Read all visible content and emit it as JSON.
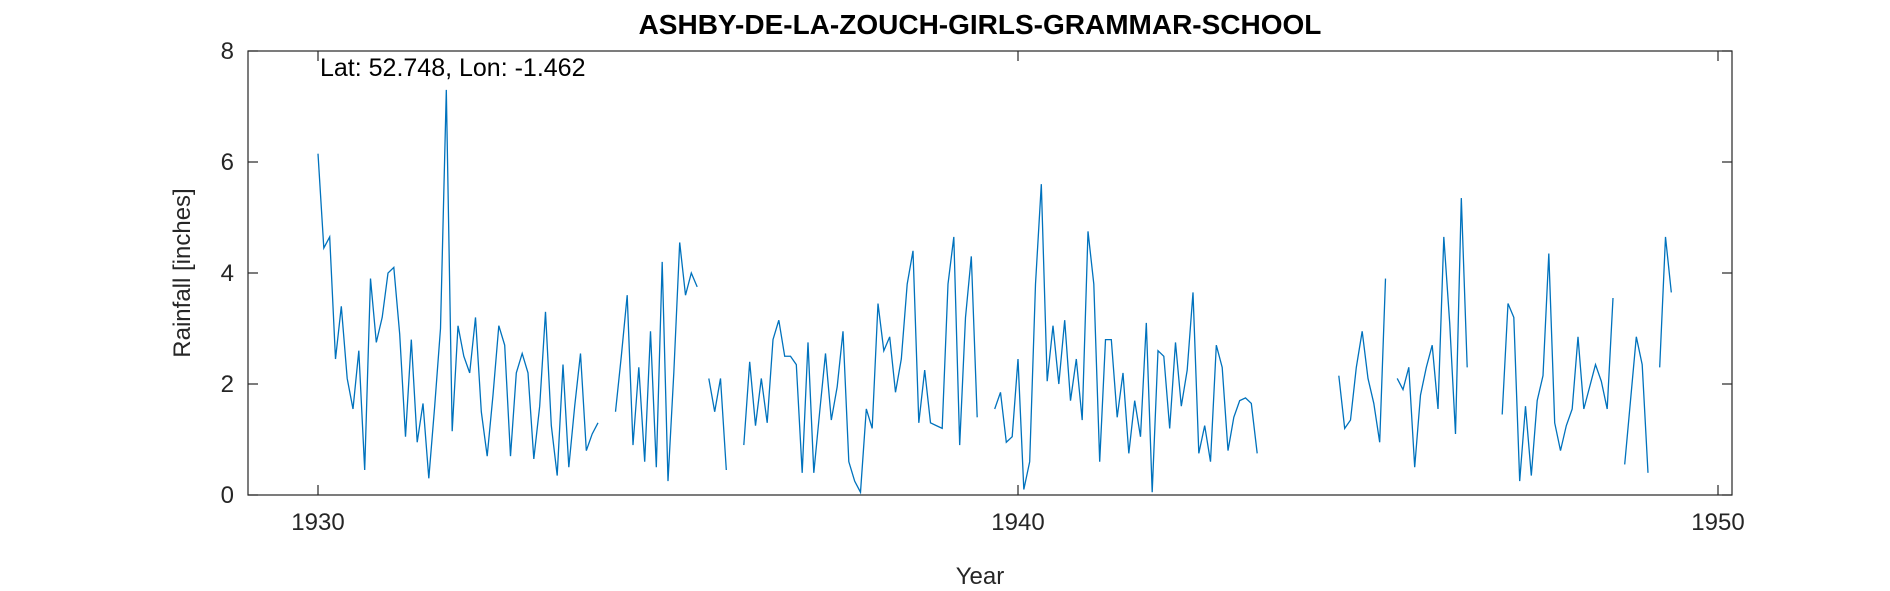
{
  "chart_data": {
    "type": "line",
    "title": "ASHBY-DE-LA-ZOUCH-GIRLS-GRAMMAR-SCHOOL",
    "annotation": "Lat: 52.748, Lon: -1.462",
    "xlabel": "Year",
    "ylabel": "Rainfall [inches]",
    "xlim": [
      1929,
      1950.2
    ],
    "xticks": [
      1930,
      1940,
      1950
    ],
    "ylim": [
      0,
      8
    ],
    "yticks": [
      0,
      2,
      4,
      6,
      8
    ],
    "series": [
      {
        "name": "Rainfall",
        "color": "#0072bd",
        "x": [
          1930,
          1930.083,
          1930.167,
          1930.25,
          1930.333,
          1930.417,
          1930.5,
          1930.583,
          1930.667,
          1930.75,
          1930.833,
          1930.917,
          1931,
          1931.083,
          1931.167,
          1931.25,
          1931.333,
          1931.417,
          1931.5,
          1931.583,
          1931.667,
          1931.75,
          1931.833,
          1931.917,
          1932,
          1932.083,
          1932.167,
          1932.25,
          1932.333,
          1932.417,
          1932.5,
          1932.583,
          1932.667,
          1932.75,
          1932.833,
          1932.917,
          1933,
          1933.083,
          1933.167,
          1933.25,
          1933.333,
          1933.417,
          1933.5,
          1933.583,
          1933.667,
          1933.75,
          1933.833,
          1933.917,
          1934,
          1934.083,
          1934.167,
          1934.25,
          1934.333,
          1934.417,
          1934.5,
          1934.583,
          1934.667,
          1934.75,
          1934.833,
          1934.917,
          1935,
          1935.083,
          1935.167,
          1935.25,
          1935.333,
          1935.417,
          1935.5,
          1935.583,
          1935.667,
          1935.75,
          1935.833,
          1935.917,
          1936,
          1936.083,
          1936.167,
          1936.25,
          1936.333,
          1936.417,
          1936.5,
          1936.583,
          1936.667,
          1936.75,
          1936.833,
          1936.917,
          1937,
          1937.083,
          1937.167,
          1937.25,
          1937.333,
          1937.417,
          1937.5,
          1937.583,
          1937.667,
          1937.75,
          1937.833,
          1937.917,
          1938,
          1938.083,
          1938.167,
          1938.25,
          1938.333,
          1938.417,
          1938.5,
          1938.583,
          1938.667,
          1938.75,
          1938.833,
          1938.917,
          1939,
          1939.083,
          1939.167,
          1939.25,
          1939.333,
          1939.417,
          1939.5,
          1939.583,
          1939.667,
          1939.75,
          1939.833,
          1939.917,
          1940,
          1940.083,
          1940.167,
          1940.25,
          1940.333,
          1940.417,
          1940.5,
          1940.583,
          1940.667,
          1940.75,
          1940.833,
          1940.917,
          1941,
          1941.083,
          1941.167,
          1941.25,
          1941.333,
          1941.417,
          1941.5,
          1941.583,
          1941.667,
          1941.75,
          1941.833,
          1941.917,
          1942,
          1942.083,
          1942.167,
          1942.25,
          1942.333,
          1942.417,
          1942.5,
          1942.583,
          1942.667,
          1942.75,
          1942.833,
          1942.917,
          1943,
          1943.083,
          1943.167,
          1943.25,
          1943.333,
          1943.417,
          1943.5,
          1943.583,
          1943.667,
          1943.75,
          1943.833,
          1943.917,
          1944,
          1944.083,
          1944.167,
          1944.25,
          1944.333,
          1944.417,
          1944.5,
          1944.583,
          1944.667,
          1944.75,
          1944.833,
          1944.917,
          1945,
          1945.083,
          1945.167,
          1945.25,
          1945.333,
          1945.417,
          1945.5,
          1945.583,
          1945.667,
          1945.75,
          1945.833,
          1945.917,
          1946,
          1946.083,
          1946.167,
          1946.25,
          1946.333,
          1946.417,
          1946.5,
          1946.583,
          1946.667,
          1946.75,
          1946.833,
          1946.917,
          1947,
          1947.083,
          1947.167,
          1947.25,
          1947.333,
          1947.417,
          1947.5,
          1947.583,
          1947.667,
          1947.75,
          1947.833,
          1947.917,
          1948,
          1948.083,
          1948.167,
          1948.25,
          1948.333,
          1948.417,
          1948.5,
          1948.583,
          1948.667,
          1948.75,
          1948.833,
          1948.917,
          1949,
          1949.083,
          1949.167,
          1949.25,
          1949.333
        ],
        "values": [
          6.15,
          4.45,
          4.65,
          2.45,
          3.4,
          2.1,
          1.55,
          2.6,
          0.45,
          3.9,
          2.75,
          3.2,
          4.0,
          4.1,
          2.9,
          1.05,
          2.8,
          0.95,
          1.65,
          0.3,
          1.6,
          3.0,
          7.3,
          1.15,
          3.05,
          2.5,
          2.2,
          3.2,
          1.5,
          0.7,
          1.8,
          3.05,
          2.7,
          0.7,
          2.2,
          2.55,
          2.2,
          0.65,
          1.6,
          3.3,
          1.25,
          0.35,
          2.35,
          0.5,
          1.6,
          2.55,
          0.8,
          1.1,
          1.3,
          null,
          null,
          1.5,
          2.5,
          3.6,
          0.9,
          2.3,
          0.6,
          2.95,
          0.5,
          4.2,
          0.25,
          2.2,
          4.55,
          3.6,
          4.0,
          3.75,
          null,
          2.1,
          1.5,
          2.1,
          0.45,
          null,
          null,
          0.9,
          2.4,
          1.25,
          2.1,
          1.3,
          2.8,
          3.15,
          2.5,
          2.5,
          2.35,
          0.4,
          2.75,
          0.4,
          1.5,
          2.55,
          1.35,
          1.95,
          2.95,
          0.6,
          0.25,
          0.05,
          1.55,
          1.2,
          3.45,
          2.6,
          2.85,
          1.85,
          2.45,
          3.8,
          4.4,
          1.3,
          2.25,
          1.3,
          1.25,
          1.2,
          3.8,
          4.65,
          0.9,
          3.2,
          4.3,
          1.4,
          null,
          null,
          1.55,
          1.85,
          0.95,
          1.05,
          2.45,
          0.1,
          0.6,
          3.8,
          5.6,
          2.05,
          3.05,
          2.0,
          3.15,
          1.7,
          2.45,
          1.35,
          4.75,
          3.8,
          0.6,
          2.8,
          2.8,
          1.4,
          2.2,
          0.75,
          1.7,
          1.05,
          3.1,
          0.05,
          2.6,
          2.5,
          1.2,
          2.75,
          1.6,
          2.25,
          3.65,
          0.75,
          1.25,
          0.6,
          2.7,
          2.3,
          0.8,
          1.4,
          1.7,
          1.75,
          1.65,
          0.75,
          null,
          null,
          null,
          null,
          null,
          null,
          null,
          null,
          null,
          null,
          null,
          null,
          null,
          2.15,
          1.2,
          1.35,
          2.3,
          2.95,
          2.1,
          1.65,
          0.95,
          3.9,
          null,
          2.1,
          1.9,
          2.3,
          0.5,
          1.8,
          2.3,
          2.7,
          1.55,
          4.65,
          3.1,
          1.1,
          5.35,
          2.3,
          null,
          null,
          null,
          null,
          null,
          1.45,
          3.45,
          3.2,
          0.25,
          1.6,
          0.35,
          1.7,
          2.15,
          4.35,
          1.3,
          0.8,
          1.25,
          1.55,
          2.85,
          1.55,
          1.95,
          2.35,
          2.05,
          1.55,
          3.55,
          null,
          0.55,
          1.7,
          2.85,
          2.35,
          0.4,
          null,
          2.3,
          4.65,
          3.65
        ]
      }
    ]
  }
}
